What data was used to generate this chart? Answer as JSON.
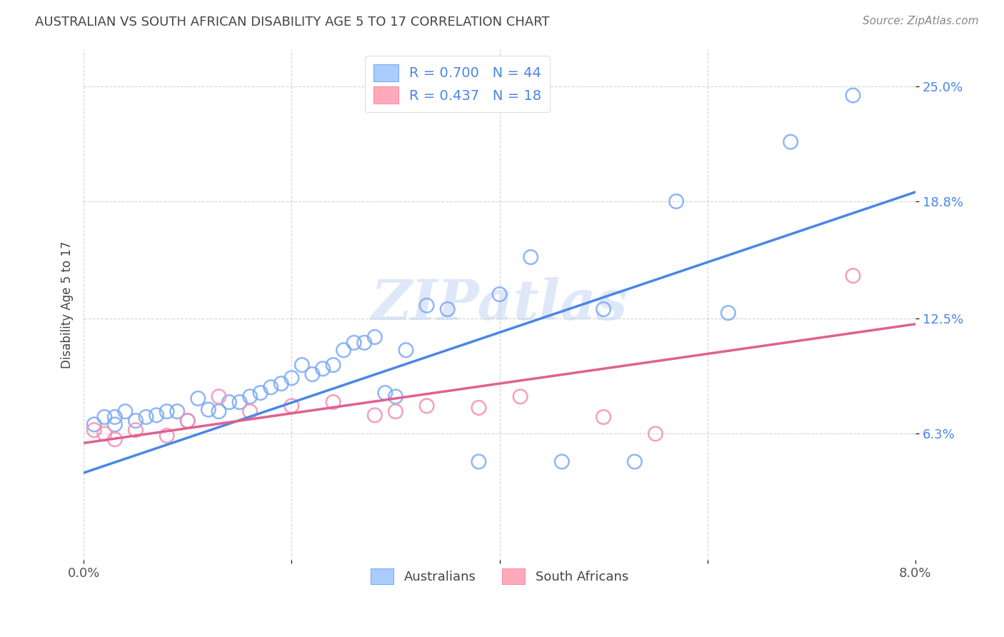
{
  "title": "AUSTRALIAN VS SOUTH AFRICAN DISABILITY AGE 5 TO 17 CORRELATION CHART",
  "source": "Source: ZipAtlas.com",
  "ylabel": "Disability Age 5 to 17",
  "xlim": [
    0.0,
    0.08
  ],
  "ylim": [
    -0.005,
    0.27
  ],
  "yticks": [
    0.063,
    0.125,
    0.188,
    0.25
  ],
  "ytick_labels": [
    "6.3%",
    "12.5%",
    "18.8%",
    "25.0%"
  ],
  "xticks": [
    0.0,
    0.02,
    0.04,
    0.06,
    0.08
  ],
  "xtick_labels": [
    "0.0%",
    "",
    "",
    "",
    "8.0%"
  ],
  "background_color": "#ffffff",
  "grid_color": "#c8c8c8",
  "watermark": "ZIPatlas",
  "aus_edge_color": "#7baaf7",
  "aus_line_color": "#4a86e8",
  "sa_edge_color": "#f48fb1",
  "sa_line_color": "#e06090",
  "legend_text_color": "#4a86e8",
  "title_color": "#444444",
  "source_color": "#888888",
  "ylabel_color": "#444444",
  "aus_scatter_x": [
    0.001,
    0.002,
    0.003,
    0.003,
    0.004,
    0.005,
    0.006,
    0.007,
    0.008,
    0.009,
    0.01,
    0.011,
    0.012,
    0.013,
    0.014,
    0.015,
    0.016,
    0.017,
    0.018,
    0.019,
    0.02,
    0.021,
    0.022,
    0.023,
    0.024,
    0.025,
    0.026,
    0.027,
    0.028,
    0.029,
    0.03,
    0.031,
    0.033,
    0.035,
    0.038,
    0.04,
    0.043,
    0.046,
    0.05,
    0.053,
    0.057,
    0.062,
    0.068,
    0.074
  ],
  "aus_scatter_y": [
    0.068,
    0.072,
    0.068,
    0.072,
    0.075,
    0.07,
    0.072,
    0.073,
    0.075,
    0.075,
    0.07,
    0.082,
    0.076,
    0.075,
    0.08,
    0.08,
    0.083,
    0.085,
    0.088,
    0.09,
    0.093,
    0.1,
    0.095,
    0.098,
    0.1,
    0.108,
    0.112,
    0.112,
    0.115,
    0.085,
    0.083,
    0.108,
    0.132,
    0.13,
    0.048,
    0.138,
    0.158,
    0.048,
    0.13,
    0.048,
    0.188,
    0.128,
    0.22,
    0.245
  ],
  "sa_scatter_x": [
    0.001,
    0.002,
    0.003,
    0.005,
    0.008,
    0.01,
    0.013,
    0.016,
    0.02,
    0.024,
    0.028,
    0.03,
    0.033,
    0.038,
    0.042,
    0.05,
    0.055,
    0.074
  ],
  "sa_scatter_y": [
    0.065,
    0.063,
    0.06,
    0.065,
    0.062,
    0.07,
    0.083,
    0.075,
    0.078,
    0.08,
    0.073,
    0.075,
    0.078,
    0.077,
    0.083,
    0.072,
    0.063,
    0.148
  ],
  "aus_line_x": [
    0.0,
    0.08
  ],
  "aus_line_y": [
    0.042,
    0.193
  ],
  "sa_line_x": [
    0.0,
    0.08
  ],
  "sa_line_y": [
    0.058,
    0.122
  ]
}
